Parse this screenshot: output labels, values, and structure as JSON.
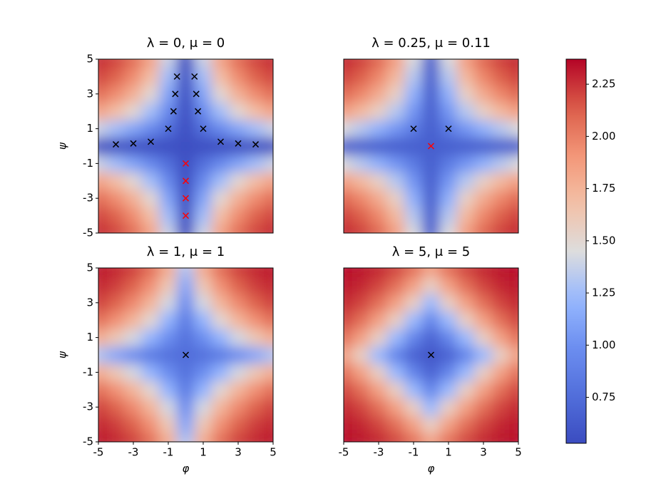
{
  "chart_data": {
    "type": "heatmap",
    "colormap": "coolwarm",
    "clim": [
      0.53,
      2.37
    ],
    "colorbar_ticks": [
      0.75,
      {
        "value": 1.0,
        "label": "1.00"
      },
      1.25,
      {
        "value": 1.5,
        "label": "1.50"
      },
      1.75,
      {
        "value": 2.0,
        "label": "2.00"
      },
      2.25
    ],
    "xlabel": "φ",
    "ylabel": "ψ",
    "xlim": [
      -5,
      5
    ],
    "ylim": [
      -5,
      5
    ],
    "xticks": [
      -5,
      -3,
      -1,
      1,
      3,
      5
    ],
    "yticks": [
      -5,
      -3,
      -1,
      1,
      3,
      5
    ],
    "x": [
      -5,
      -4,
      -3,
      -2,
      -1,
      0,
      1,
      2,
      3,
      4,
      5
    ],
    "y": [
      -5,
      -4,
      -3,
      -2,
      -1,
      0,
      1,
      2,
      3,
      4,
      5
    ],
    "panels": [
      {
        "title": "λ = 0, μ = 0",
        "z": [
          [
            2.27,
            2.2,
            2.07,
            1.84,
            1.39,
            0.55,
            1.39,
            1.84,
            2.07,
            2.2,
            2.27
          ],
          [
            2.2,
            2.11,
            1.95,
            1.69,
            1.26,
            0.55,
            1.26,
            1.69,
            1.95,
            2.11,
            2.2
          ],
          [
            2.07,
            1.95,
            1.77,
            1.5,
            1.11,
            0.55,
            1.11,
            1.5,
            1.77,
            1.95,
            2.07
          ],
          [
            1.84,
            1.69,
            1.5,
            1.26,
            0.95,
            0.55,
            0.95,
            1.26,
            1.5,
            1.69,
            1.84
          ],
          [
            1.39,
            1.26,
            1.11,
            0.95,
            0.76,
            0.55,
            0.76,
            0.95,
            1.11,
            1.26,
            1.39
          ],
          [
            0.55,
            0.55,
            0.55,
            0.55,
            0.55,
            0.55,
            0.55,
            0.55,
            0.55,
            0.55,
            0.55
          ],
          [
            1.39,
            1.26,
            1.11,
            0.95,
            0.76,
            0.55,
            0.76,
            0.95,
            1.11,
            1.26,
            1.39
          ],
          [
            1.84,
            1.69,
            1.5,
            1.26,
            0.95,
            0.55,
            0.95,
            1.26,
            1.5,
            1.69,
            1.84
          ],
          [
            2.07,
            1.95,
            1.77,
            1.5,
            1.11,
            0.55,
            1.11,
            1.5,
            1.77,
            1.95,
            2.07
          ],
          [
            2.2,
            2.11,
            1.95,
            1.69,
            1.26,
            0.55,
            1.26,
            1.69,
            1.95,
            2.11,
            2.2
          ],
          [
            2.27,
            2.2,
            2.07,
            1.84,
            1.39,
            0.55,
            1.39,
            1.84,
            2.07,
            2.2,
            2.27
          ]
        ],
        "markers": [
          {
            "color": "#000000",
            "x": [
              -4,
              -3,
              -2,
              -1,
              -0.7,
              -0.6,
              -0.5,
              0.5,
              0.6,
              0.7,
              1,
              2,
              3,
              4
            ],
            "y": [
              0.1,
              0.15,
              0.25,
              1,
              2,
              3,
              4,
              4,
              3,
              2,
              1,
              0.25,
              0.15,
              0.1
            ]
          },
          {
            "color": "#ff0000",
            "x": [
              0,
              0,
              0,
              0
            ],
            "y": [
              -1,
              -2,
              -3,
              -4
            ]
          }
        ]
      },
      {
        "title": "λ = 0.25, μ = 0.11",
        "z": [
          [
            2.28,
            2.21,
            2.09,
            1.86,
            1.44,
            0.65,
            1.44,
            1.86,
            2.09,
            2.21,
            2.28
          ],
          [
            2.21,
            2.12,
            1.97,
            1.72,
            1.32,
            0.65,
            1.32,
            1.72,
            1.97,
            2.12,
            2.21
          ],
          [
            2.09,
            1.97,
            1.8,
            1.55,
            1.18,
            0.65,
            1.18,
            1.55,
            1.8,
            1.97,
            2.09
          ],
          [
            1.86,
            1.72,
            1.55,
            1.32,
            1.03,
            0.65,
            1.03,
            1.32,
            1.55,
            1.72,
            1.86
          ],
          [
            1.44,
            1.32,
            1.18,
            1.03,
            0.85,
            0.65,
            0.85,
            1.03,
            1.18,
            1.32,
            1.44
          ],
          [
            0.65,
            0.65,
            0.65,
            0.65,
            0.65,
            0.65,
            0.65,
            0.65,
            0.65,
            0.65,
            0.65
          ],
          [
            1.44,
            1.32,
            1.18,
            1.03,
            0.85,
            0.65,
            0.85,
            1.03,
            1.18,
            1.32,
            1.44
          ],
          [
            1.86,
            1.72,
            1.55,
            1.32,
            1.03,
            0.65,
            1.03,
            1.32,
            1.55,
            1.72,
            1.86
          ],
          [
            2.09,
            1.97,
            1.8,
            1.55,
            1.18,
            0.65,
            1.18,
            1.55,
            1.8,
            1.97,
            2.09
          ],
          [
            2.21,
            2.12,
            1.97,
            1.72,
            1.32,
            0.65,
            1.32,
            1.72,
            1.97,
            2.12,
            2.21
          ],
          [
            2.28,
            2.21,
            2.09,
            1.86,
            1.44,
            0.65,
            1.44,
            1.86,
            2.09,
            2.21,
            2.28
          ]
        ],
        "markers": [
          {
            "color": "#000000",
            "x": [
              -1,
              1
            ],
            "y": [
              1,
              1
            ]
          },
          {
            "color": "#ff0000",
            "x": [
              0
            ],
            "y": [
              0
            ]
          }
        ]
      },
      {
        "title": "λ = 1, μ = 1",
        "z": [
          [
            2.32,
            2.28,
            2.21,
            2.07,
            1.79,
            1.3,
            1.79,
            2.07,
            2.21,
            2.28,
            2.32
          ],
          [
            2.28,
            2.22,
            2.11,
            1.93,
            1.62,
            1.12,
            1.62,
            1.93,
            2.11,
            2.22,
            2.28
          ],
          [
            2.21,
            2.11,
            1.96,
            1.74,
            1.42,
            0.97,
            1.42,
            1.74,
            1.96,
            2.11,
            2.21
          ],
          [
            2.07,
            1.93,
            1.74,
            1.5,
            1.2,
            0.85,
            1.2,
            1.5,
            1.74,
            1.93,
            2.07
          ],
          [
            1.79,
            1.62,
            1.42,
            1.2,
            0.98,
            0.78,
            0.98,
            1.2,
            1.42,
            1.62,
            1.79
          ],
          [
            1.3,
            1.12,
            0.97,
            0.85,
            0.78,
            0.75,
            0.78,
            0.85,
            0.97,
            1.12,
            1.3
          ],
          [
            1.79,
            1.62,
            1.42,
            1.2,
            0.98,
            0.78,
            0.98,
            1.2,
            1.42,
            1.62,
            1.79
          ],
          [
            2.07,
            1.93,
            1.74,
            1.5,
            1.2,
            0.85,
            1.2,
            1.5,
            1.74,
            1.93,
            2.07
          ],
          [
            2.21,
            2.11,
            1.96,
            1.74,
            1.42,
            0.97,
            1.42,
            1.74,
            1.96,
            2.11,
            2.21
          ],
          [
            2.28,
            2.22,
            2.11,
            1.93,
            1.62,
            1.12,
            1.62,
            1.93,
            2.11,
            2.22,
            2.28
          ],
          [
            2.32,
            2.28,
            2.21,
            2.07,
            1.79,
            1.3,
            1.79,
            2.07,
            2.21,
            2.28,
            2.32
          ]
        ],
        "markers": [
          {
            "color": "#000000",
            "x": [
              0
            ],
            "y": [
              0
            ]
          }
        ]
      },
      {
        "title": "λ = 5, μ = 5",
        "z": [
          [
            2.34,
            2.32,
            2.28,
            2.2,
            2.06,
            1.85,
            2.06,
            2.2,
            2.28,
            2.32,
            2.34
          ],
          [
            2.32,
            2.28,
            2.2,
            2.06,
            1.85,
            1.56,
            1.85,
            2.06,
            2.2,
            2.28,
            2.32
          ],
          [
            2.28,
            2.2,
            2.06,
            1.85,
            1.56,
            1.23,
            1.56,
            1.85,
            2.06,
            2.2,
            2.28
          ],
          [
            2.2,
            2.06,
            1.85,
            1.56,
            1.23,
            0.92,
            1.23,
            1.56,
            1.85,
            2.06,
            2.2
          ],
          [
            2.06,
            1.85,
            1.56,
            1.23,
            0.92,
            0.69,
            0.92,
            1.23,
            1.56,
            1.85,
            2.06
          ],
          [
            1.85,
            1.56,
            1.23,
            0.92,
            0.69,
            0.6,
            0.69,
            0.92,
            1.23,
            1.56,
            1.85
          ],
          [
            2.06,
            1.85,
            1.56,
            1.23,
            0.92,
            0.69,
            0.92,
            1.23,
            1.56,
            1.85,
            2.06
          ],
          [
            2.2,
            2.06,
            1.85,
            1.56,
            1.23,
            0.92,
            1.23,
            1.56,
            1.85,
            2.06,
            2.2
          ],
          [
            2.28,
            2.2,
            2.06,
            1.85,
            1.56,
            1.23,
            1.56,
            1.85,
            2.06,
            2.2,
            2.28
          ],
          [
            2.32,
            2.28,
            2.2,
            2.06,
            1.85,
            1.56,
            1.85,
            2.06,
            2.2,
            2.28,
            2.32
          ],
          [
            2.34,
            2.32,
            2.28,
            2.2,
            2.06,
            1.85,
            2.06,
            2.2,
            2.28,
            2.32,
            2.34
          ]
        ],
        "markers": [
          {
            "color": "#000000",
            "x": [
              0
            ],
            "y": [
              0
            ]
          }
        ]
      }
    ]
  }
}
